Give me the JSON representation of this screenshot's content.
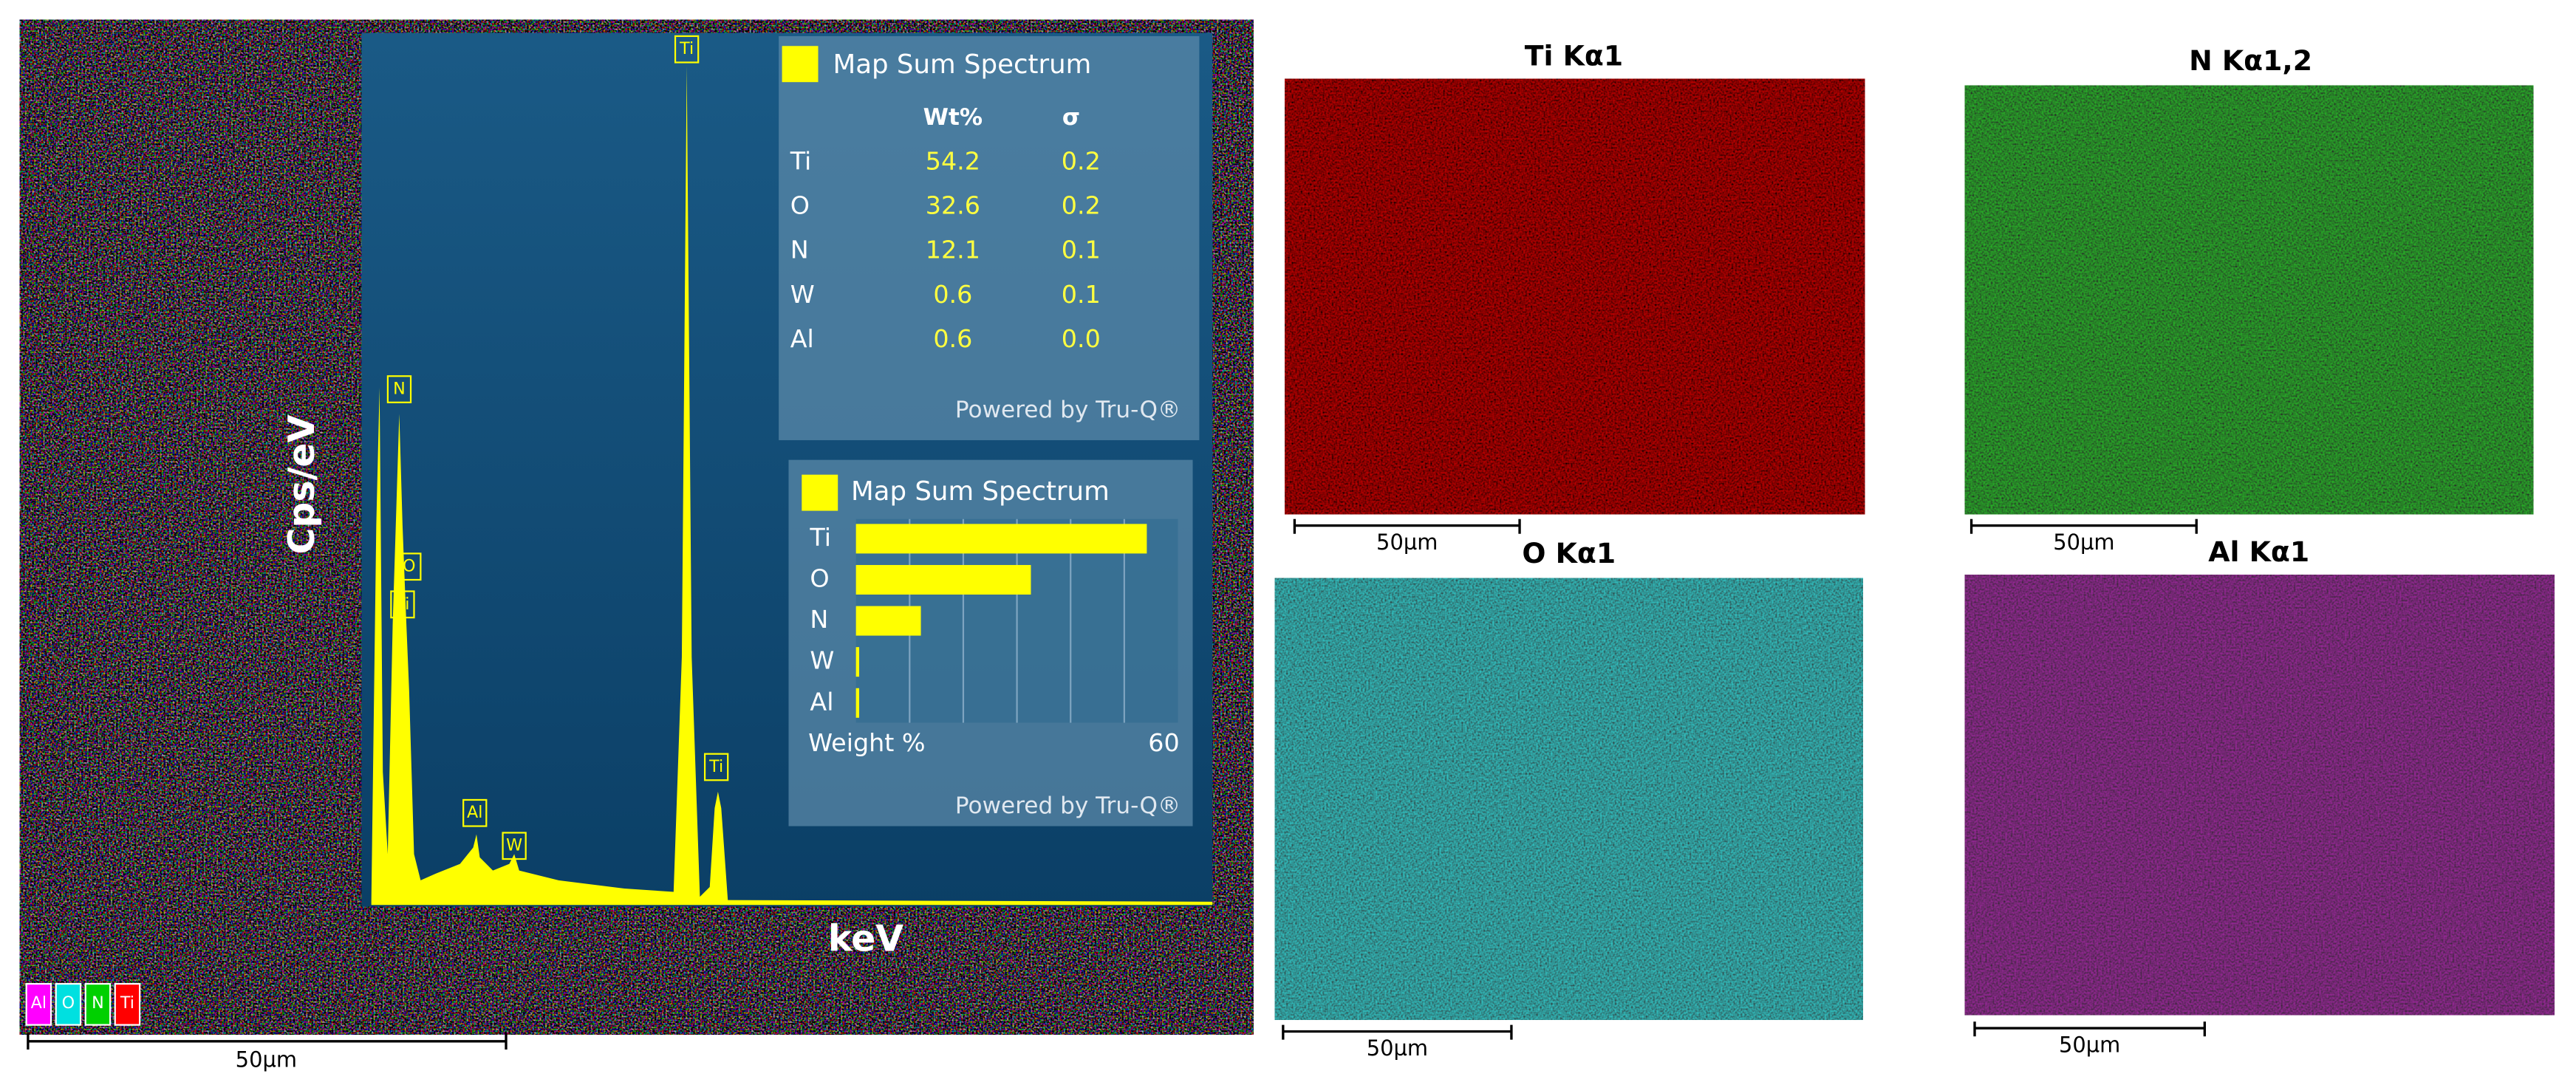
{
  "spectrum": {
    "y_axis_label": "Cps/eV",
    "x_axis_label": "keV",
    "peak_labels": [
      "Ti",
      "N",
      "O",
      "Ti",
      "Al",
      "W",
      "Ti"
    ]
  },
  "quant_table": {
    "title": "Map Sum Spectrum",
    "columns": [
      "Wt%",
      "σ"
    ],
    "rows": [
      [
        "Ti",
        54.2,
        "0.2"
      ],
      [
        "O",
        32.6,
        "0.2"
      ],
      [
        "N",
        12.1,
        "0.1"
      ],
      [
        "W",
        0.6,
        "0.1"
      ],
      [
        "Al",
        0.6,
        "0.0"
      ]
    ],
    "footer": "Powered by Tru-Q®"
  },
  "bar_panel": {
    "title": "Map Sum Spectrum",
    "categories": [
      "Ti",
      "O",
      "N",
      "W",
      "Al"
    ],
    "axis_label": "Weight %",
    "axis_max": 60,
    "footer": "Powered by Tru-Q®"
  },
  "layered_map": {
    "legend": [
      "Al",
      "O",
      "N",
      "Ti"
    ],
    "scale_bar": "50µm"
  },
  "maps": [
    {
      "title": "Ti Kα1",
      "scale_bar": "50µm"
    },
    {
      "title": "N Kα1,2",
      "scale_bar": "50µm"
    },
    {
      "title": "O Kα1",
      "scale_bar": "50µm"
    },
    {
      "title": "Al Kα1",
      "scale_bar": "50µm"
    }
  ]
}
